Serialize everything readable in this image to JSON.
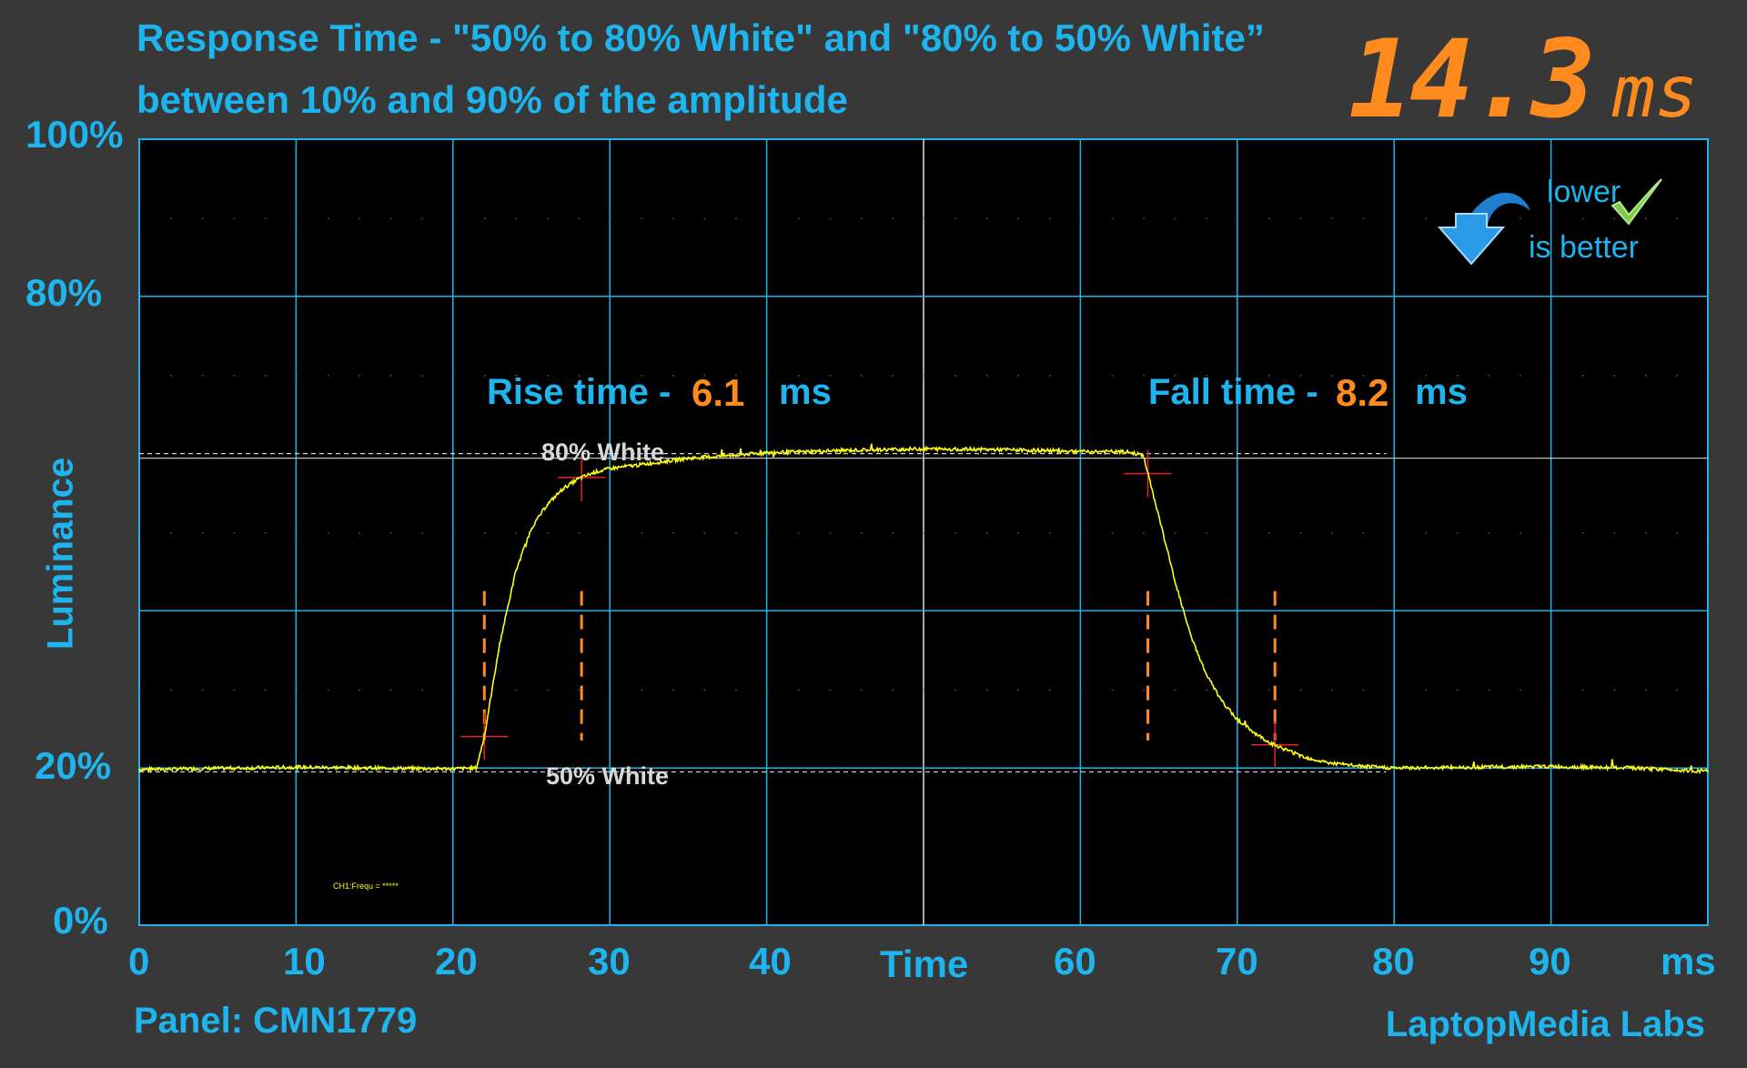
{
  "title": {
    "line1": "Response Time - \"50% to 80% White\" and \"80% to 50% White”",
    "line2": "between 10% and 90% of the amplitude"
  },
  "readout": {
    "value": "14.3",
    "unit": "ms"
  },
  "badge": {
    "line1": "lower",
    "line2": "is better"
  },
  "annotations": {
    "rise_label": "Rise time -",
    "rise_value": "6.1",
    "fall_label": "Fall time -",
    "fall_value": "8.2",
    "unit": "ms",
    "upper_level": "80% White",
    "lower_level": "50% White",
    "channel_text": "CH1:Frequ = *****"
  },
  "footer": {
    "panel": "Panel: CMN1779",
    "lab": "LaptopMedia Labs"
  },
  "colors": {
    "accent": "#1eb4ee",
    "highlight": "#ff8a1e",
    "trace": "#ffff14",
    "marker": "#e8202a",
    "background": "#383838",
    "plot_bg": "#000000"
  },
  "chart_data": {
    "type": "line",
    "title": "Response Time - \"50% to 80% White\" and \"80% to 50% White”",
    "subtitle": "between 10% and 90% of the amplitude",
    "xlabel": "Time",
    "xunit": "ms",
    "ylabel": "Luminance",
    "xlim": [
      0,
      100
    ],
    "ylim": [
      0,
      100
    ],
    "xticks": [
      "0",
      "10",
      "20",
      "30",
      "40",
      "60",
      "70",
      "80",
      "90"
    ],
    "xtick_values": [
      0,
      10,
      20,
      30,
      40,
      60,
      70,
      80,
      90
    ],
    "yticks": [
      "0%",
      "20%",
      "80%",
      "100%"
    ],
    "ytick_values": [
      0,
      20,
      80,
      100
    ],
    "grid": true,
    "levels": [
      {
        "label": "80% White",
        "y": 60
      },
      {
        "label": "50% White",
        "y": 19.5
      }
    ],
    "series": [
      {
        "x": [
          0,
          10,
          20,
          21.5,
          22,
          23,
          24,
          25,
          26,
          27,
          28,
          29,
          30,
          32,
          35,
          38,
          40,
          45,
          50,
          55,
          60,
          63,
          64,
          65,
          66,
          67,
          68,
          69,
          70,
          71,
          72,
          73,
          74,
          75,
          76,
          78,
          80,
          85,
          90,
          95,
          100
        ],
        "y": [
          19.8,
          20.1,
          19.9,
          20.0,
          24.0,
          36.0,
          45.0,
          50.5,
          53.5,
          55.5,
          56.8,
          57.6,
          58.1,
          58.6,
          59.4,
          59.8,
          60.1,
          60.4,
          60.6,
          60.5,
          60.3,
          60.2,
          59.8,
          52.0,
          44.0,
          37.0,
          32.0,
          28.5,
          26.2,
          24.6,
          23.3,
          22.4,
          21.6,
          21.0,
          20.6,
          20.2,
          20.0,
          20.1,
          20.2,
          20.0,
          19.6
        ]
      }
    ],
    "rise": {
      "start_ms": 22.0,
      "end_ms": 28.2,
      "time_ms": 6.1
    },
    "fall": {
      "start_ms": 64.3,
      "end_ms": 72.4,
      "time_ms": 8.2
    },
    "total_ms": 14.3
  }
}
